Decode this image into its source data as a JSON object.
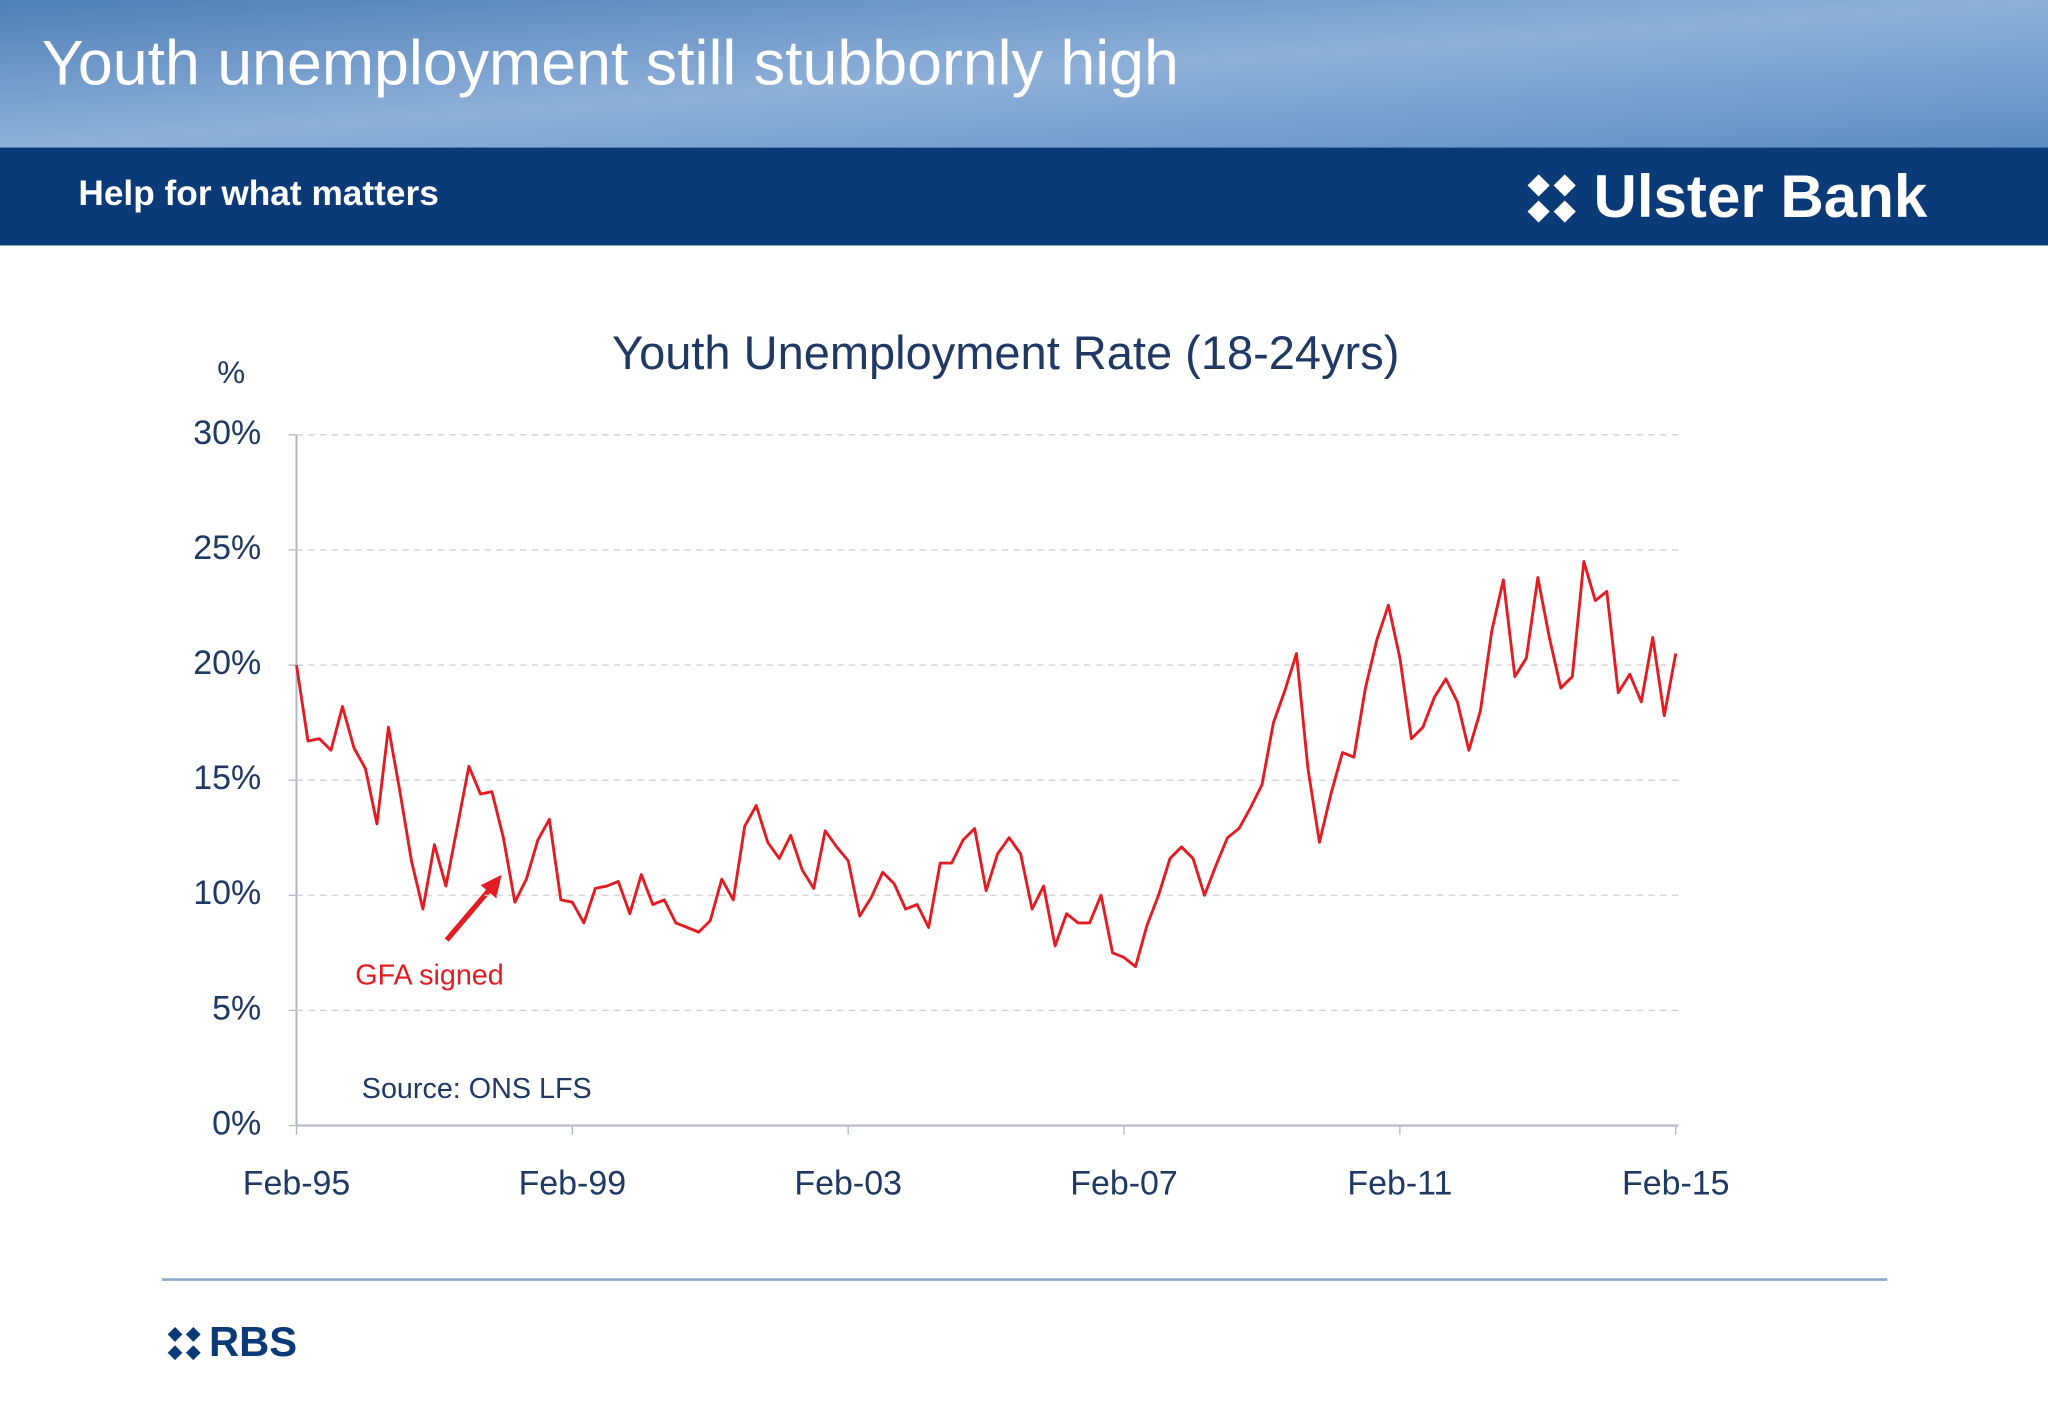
{
  "header": {
    "title": "Youth unemployment still stubbornly high",
    "tagline": "Help for what matters",
    "brand": "Ulster Bank"
  },
  "footer": {
    "brand": "RBS"
  },
  "chart_data": {
    "type": "line",
    "title": "Youth Unemployment Rate (18-24yrs)",
    "y_label": "%",
    "annotations": [
      "GFA signed",
      "Source: ONS LFS"
    ],
    "color": "#e31b23",
    "grid": true,
    "ylim": [
      0,
      30
    ],
    "yticks": [
      {
        "value": 0,
        "label": "0%"
      },
      {
        "value": 5,
        "label": "5%"
      },
      {
        "value": 10,
        "label": "10%"
      },
      {
        "value": 15,
        "label": "15%"
      },
      {
        "value": 20,
        "label": "20%"
      },
      {
        "value": 25,
        "label": "25%"
      },
      {
        "value": 30,
        "label": "30%"
      }
    ],
    "categories": [
      "Feb-95",
      null,
      null,
      null,
      null,
      null,
      null,
      null,
      null,
      null,
      null,
      null,
      null,
      null,
      null,
      null,
      null,
      null,
      null,
      null,
      null,
      null,
      null,
      null,
      "Feb-99",
      null,
      null,
      null,
      null,
      null,
      null,
      null,
      null,
      null,
      null,
      null,
      null,
      null,
      null,
      null,
      null,
      null,
      null,
      null,
      null,
      null,
      null,
      null,
      "Feb-03",
      null,
      null,
      null,
      null,
      null,
      null,
      null,
      null,
      null,
      null,
      null,
      null,
      null,
      null,
      null,
      null,
      null,
      null,
      null,
      null,
      null,
      null,
      null,
      "Feb-07",
      null,
      null,
      null,
      null,
      null,
      null,
      null,
      null,
      null,
      null,
      null,
      null,
      null,
      null,
      null,
      null,
      null,
      null,
      null,
      null,
      null,
      null,
      null,
      "Feb-11",
      null,
      null,
      null,
      null,
      null,
      null,
      null,
      null,
      null,
      null,
      null,
      null,
      null,
      null,
      null,
      null,
      null,
      null,
      null,
      null,
      null,
      null,
      null,
      "Feb-15"
    ],
    "values": [
      20,
      16.7,
      16.8,
      16.3,
      18.2,
      16.4,
      15.5,
      13.1,
      17.3,
      14.5,
      11.5,
      9.4,
      12.2,
      10.4,
      13,
      15.6,
      14.4,
      14.5,
      12.5,
      9.7,
      10.7,
      12.4,
      13.3,
      9.8,
      9.7,
      8.8,
      10.3,
      10.4,
      10.6,
      9.2,
      10.9,
      9.6,
      9.8,
      8.8,
      8.6,
      8.4,
      8.9,
      10.7,
      9.8,
      13,
      13.9,
      12.3,
      11.6,
      12.6,
      11.1,
      10.3,
      12.8,
      12.1,
      11.5,
      9.1,
      9.9,
      11,
      10.5,
      9.4,
      9.6,
      8.6,
      11.4,
      11.4,
      12.4,
      12.9,
      10.2,
      11.8,
      12.5,
      11.8,
      9.4,
      10.4,
      7.8,
      9.2,
      8.8,
      8.8,
      10,
      7.5,
      7.3,
      6.9,
      8.7,
      10,
      11.6,
      12.1,
      11.6,
      10,
      11.3,
      12.5,
      12.9,
      13.8,
      14.8,
      17.5,
      18.9,
      20.5,
      15.5,
      12.3,
      14.4,
      16.2,
      16,
      19,
      21.1,
      22.6,
      20.3,
      16.8,
      17.3,
      18.6,
      19.4,
      18.4,
      16.3,
      18,
      21.5,
      23.7,
      19.5,
      20.3,
      23.8,
      21.2,
      19,
      19.5,
      24.5,
      22.8,
      23.2,
      18.8,
      19.6,
      18.4,
      21.2,
      17.8,
      20.5
    ]
  }
}
